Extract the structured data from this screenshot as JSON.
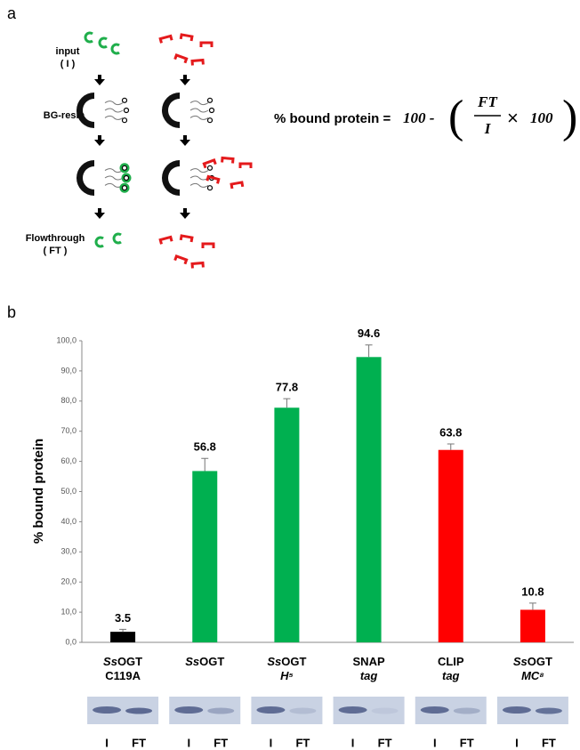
{
  "panel_a": {
    "label": "a",
    "input_label": "input",
    "input_abbr": "( I )",
    "resin_label": "BG-resin",
    "flow_label": "Flowthrough",
    "flow_abbr": "( FT )",
    "equation": {
      "left": "% bound protein = ",
      "term": "100 -",
      "numerator": "FT",
      "denominator": "I",
      "times": "×",
      "factor": "100"
    }
  },
  "panel_b_label": "b",
  "chart_data": {
    "type": "bar",
    "ylabel": "% bound protein",
    "categories": [
      [
        [
          {
            "text": "Ss",
            "italic": true
          },
          {
            "text": "OGT",
            "italic": false
          }
        ],
        [
          {
            "text": "C119A",
            "italic": false
          }
        ]
      ],
      [
        [
          {
            "text": "Ss",
            "italic": true
          },
          {
            "text": "OGT",
            "italic": false
          }
        ]
      ],
      [
        [
          {
            "text": "Ss",
            "italic": true
          },
          {
            "text": "OGT",
            "italic": false
          }
        ],
        [
          {
            "text": "H⁵",
            "italic": true
          }
        ]
      ],
      [
        [
          {
            "text": "SNAP",
            "italic": false
          }
        ],
        [
          {
            "text": "tag",
            "italic": true
          }
        ]
      ],
      [
        [
          {
            "text": "CLIP",
            "italic": false
          }
        ],
        [
          {
            "text": "tag",
            "italic": true
          }
        ]
      ],
      [
        [
          {
            "text": "Ss",
            "italic": true
          },
          {
            "text": "OGT",
            "italic": false
          }
        ],
        [
          {
            "text": "MC⁸",
            "italic": true
          }
        ]
      ]
    ],
    "values": [
      3.5,
      56.8,
      77.8,
      94.6,
      63.8,
      10.8
    ],
    "errors": [
      0.8,
      4.2,
      3.0,
      4.0,
      2.0,
      2.2
    ],
    "colors": [
      "#000000",
      "#00b050",
      "#00b050",
      "#00b050",
      "#ff0000",
      "#ff0000"
    ],
    "ylim": [
      0,
      100
    ],
    "yticks": [
      {
        "value": 0,
        "label": "0,0"
      },
      {
        "value": 10,
        "label": "10,0"
      },
      {
        "value": 20,
        "label": "20,0"
      },
      {
        "value": 30,
        "label": "30,0"
      },
      {
        "value": 40,
        "label": "40,0"
      },
      {
        "value": 50,
        "label": "50,0"
      },
      {
        "value": 60,
        "label": "60,0"
      },
      {
        "value": 70,
        "label": "70,0"
      },
      {
        "value": 80,
        "label": "80,0"
      },
      {
        "value": 90,
        "label": "90,0"
      },
      {
        "value": 100,
        "label": "100,0"
      }
    ],
    "gel_lanes": [
      "I",
      "FT"
    ]
  }
}
